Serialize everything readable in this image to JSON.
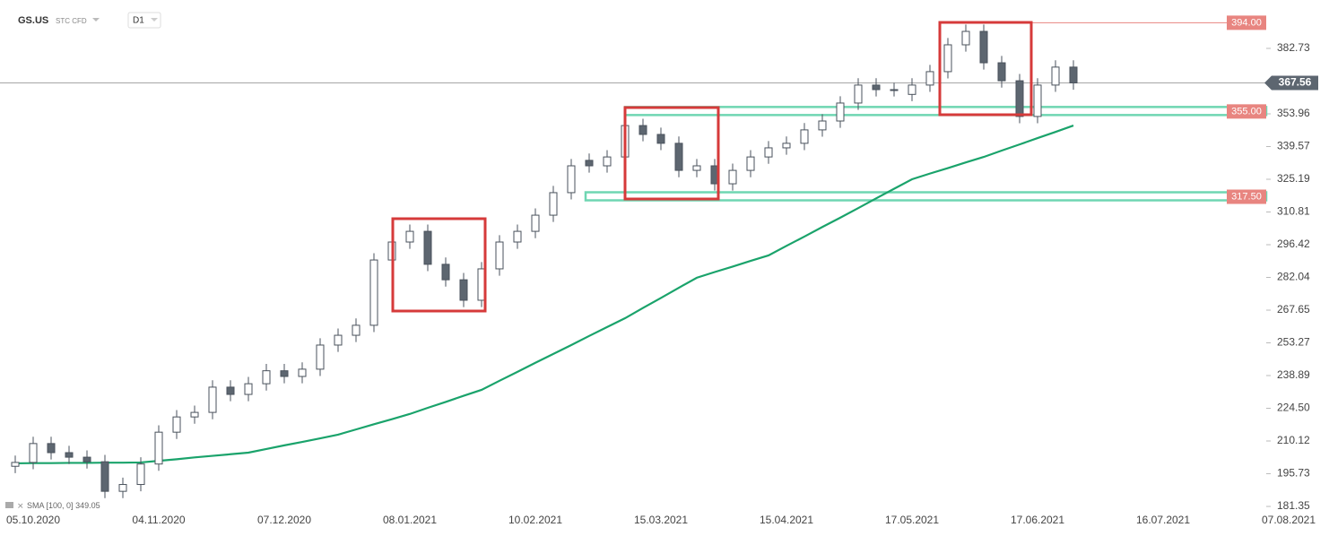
{
  "chart_data": {
    "type": "candlestick",
    "title": "GS.US",
    "subtitle": "STC CFD",
    "timeframe": "D1",
    "categories": [
      null,
      "05.10.2020",
      null,
      null,
      null,
      null,
      null,
      null,
      "04.11.2020",
      null,
      null,
      null,
      null,
      null,
      null,
      "07.12.2020",
      null,
      null,
      null,
      null,
      null,
      null,
      "08.01.2021",
      null,
      null,
      null,
      null,
      null,
      null,
      "10.02.2021",
      null,
      null,
      null,
      null,
      null,
      null,
      "15.03.2021",
      null,
      null,
      null,
      null,
      null,
      null,
      "15.04.2021",
      null,
      null,
      null,
      null,
      null,
      null,
      "17.05.2021",
      null,
      null,
      null,
      null,
      null,
      null,
      "17.06.2021",
      null,
      null,
      null,
      null,
      null,
      null,
      "16.07.2021",
      null,
      null,
      null,
      null,
      null,
      null,
      "07.08.2021"
    ],
    "open": [
      199,
      200.7,
      209,
      205,
      203,
      201,
      188,
      191,
      200,
      214,
      220.7,
      222.7,
      233.8,
      230.6,
      235.3,
      241,
      238.5,
      241.7,
      252.3,
      256.6,
      261,
      289.7,
      297.6,
      302.3,
      287.8,
      281,
      272,
      285.8,
      297.6,
      302.3,
      309.4,
      319.3,
      333.5,
      331.1,
      335,
      348.8,
      344.9,
      341,
      329.1,
      331.1,
      323.2,
      329.1,
      335,
      339,
      341,
      346.9,
      350.8,
      358.7,
      366.6,
      364.6,
      362.5,
      366.6,
      372.5,
      384.3,
      390.2,
      376.4,
      368.5,
      352.8,
      366.6,
      374.5,
      null,
      null,
      null,
      null,
      null,
      null,
      null,
      null,
      null,
      null,
      null,
      null
    ],
    "high": [
      203.7,
      212,
      212,
      208,
      206,
      204,
      194,
      203,
      217,
      223.7,
      225.7,
      236.8,
      236.8,
      238.3,
      244,
      244,
      244.7,
      255.3,
      259.6,
      264,
      292.7,
      300.6,
      305.3,
      305.3,
      290.8,
      284,
      288.8,
      300.6,
      305.3,
      312.4,
      322.3,
      334.1,
      336.5,
      338,
      351.8,
      351.8,
      347.9,
      344,
      334.1,
      334.1,
      332.1,
      338,
      342,
      344,
      349.9,
      353.8,
      361.7,
      369.6,
      369.6,
      367.6,
      369.6,
      375.5,
      387.3,
      393.2,
      393.2,
      379.4,
      371.5,
      369.6,
      377.5,
      377.5,
      null,
      null,
      null,
      null,
      null,
      null,
      null,
      null,
      null,
      null,
      null,
      null
    ],
    "low": [
      196,
      197.7,
      202,
      200,
      198,
      185,
      185,
      188,
      197,
      211,
      217.7,
      219.7,
      227.6,
      227.6,
      232.3,
      235.5,
      235.5,
      238.7,
      249.3,
      253.6,
      258,
      286.7,
      294.6,
      284.8,
      278,
      269,
      269,
      282.8,
      294.6,
      299.3,
      306.4,
      316.3,
      328.1,
      328.1,
      332,
      341.9,
      338,
      326.1,
      326.1,
      320.2,
      320.2,
      326.1,
      332,
      336,
      338,
      343.9,
      347.8,
      355.7,
      361.6,
      361.6,
      359.5,
      363.6,
      369.5,
      381.3,
      373.4,
      365.5,
      349.8,
      349.8,
      363.6,
      364.56,
      null,
      null,
      null,
      null,
      null,
      null,
      null,
      null,
      null,
      null,
      null,
      null
    ],
    "close": [
      200.7,
      209,
      205,
      203,
      201,
      188,
      191,
      200,
      214,
      220.7,
      222.7,
      233.8,
      230.6,
      235.3,
      241,
      238.5,
      241.7,
      252.3,
      256.6,
      261,
      289.7,
      297.6,
      302.3,
      287.8,
      281,
      272,
      285.8,
      297.6,
      302.3,
      309.4,
      319.3,
      331.1,
      331.1,
      335,
      348.8,
      344.9,
      341,
      329.1,
      331.1,
      323.2,
      329.1,
      335,
      339,
      341,
      346.9,
      350.8,
      358.7,
      366.6,
      364.6,
      364.6,
      366.6,
      372.5,
      384.3,
      390.2,
      376.4,
      368.5,
      352.8,
      366.6,
      374.5,
      367.56,
      null,
      null,
      null,
      null,
      null,
      null,
      null,
      null,
      null,
      null,
      null,
      null
    ],
    "up_color": "#ffffff",
    "down_color": "#5d6670",
    "ylim": [
      178.6,
      404.0
    ],
    "yticks": [
      181.35,
      195.73,
      210.12,
      {
        "value": 224.5,
        "label": "224.50"
      },
      238.89,
      253.27,
      267.65,
      282.04,
      296.42,
      310.81,
      325.19,
      339.57,
      353.96,
      382.73
    ],
    "last_price": 367.56,
    "sma": {
      "name": "SMA",
      "params": "[100, 0]",
      "value": 349.05,
      "color": "#1aa36b",
      "values": [
        200.3,
        200.4,
        200.4,
        200.5,
        200.5,
        200.6,
        200.6,
        200.7,
        201.4,
        202.1,
        202.9,
        203.6,
        204.3,
        205,
        206.6,
        208.2,
        209.7,
        211.3,
        212.9,
        215.2,
        217.5,
        219.7,
        222,
        224.7,
        227.3,
        230,
        232.6,
        236.6,
        240.5,
        244.5,
        248.4,
        252.3,
        256.3,
        260.2,
        264.1,
        268.6,
        273,
        277.5,
        281.9,
        284.4,
        286.8,
        289.3,
        291.7,
        295.9,
        300,
        304.2,
        308.3,
        312.5,
        316.8,
        321,
        325.2,
        327.7,
        330.1,
        332.6,
        335,
        337.8,
        340.5,
        343.3,
        346,
        348.8,
        null,
        null,
        null,
        null,
        null,
        null,
        null,
        null,
        null,
        null,
        null,
        null
      ]
    },
    "levels": [
      {
        "value": 394,
        "label": "394.00"
      },
      {
        "value": 355,
        "label": "355.00"
      },
      {
        "value": 317.5,
        "label": "317.50"
      }
    ],
    "level_color": "#e88580",
    "zone_color": "#6fd6b2"
  }
}
